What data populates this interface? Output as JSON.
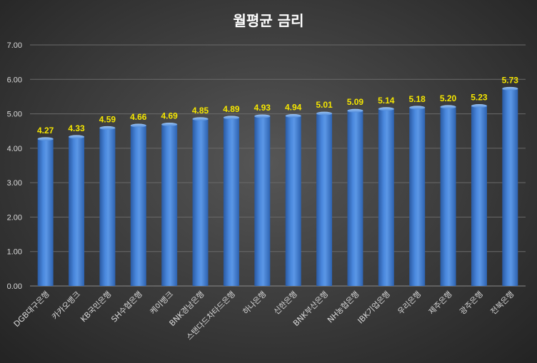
{
  "chart_data": {
    "type": "bar",
    "title": "월평균 금리",
    "categories": [
      "DGB대구은행",
      "카카오뱅크",
      "KB국민은행",
      "SH수협은행",
      "케이뱅크",
      "BNK경남은행",
      "스탠다드차타드은행",
      "하나은행",
      "신한은행",
      "BNK부산은행",
      "NH농협은행",
      "IBK기업은행",
      "우리은행",
      "제주은행",
      "광주은행",
      "전북은행"
    ],
    "values": [
      4.27,
      4.33,
      4.59,
      4.66,
      4.69,
      4.85,
      4.89,
      4.93,
      4.94,
      5.01,
      5.09,
      5.14,
      5.18,
      5.2,
      5.23,
      5.73
    ],
    "data_labels": [
      "4.27",
      "4.33",
      "4.59",
      "4.66",
      "4.69",
      "4.85",
      "4.89",
      "4.93",
      "4.94",
      "5.01",
      "5.09",
      "5.14",
      "5.18",
      "5.20",
      "5.23",
      "5.73"
    ],
    "ylim": [
      0,
      7
    ],
    "yticks": [
      "0.00",
      "1.00",
      "2.00",
      "3.00",
      "4.00",
      "5.00",
      "6.00",
      "7.00"
    ],
    "xlabel": "",
    "ylabel": "",
    "grid": true,
    "legend": "none",
    "colors": {
      "bar": "#3f7bd1",
      "bar_light": "#6fa3ea",
      "bar_dark": "#2a5aa3",
      "label": "#f5e600",
      "title": "#ffffff",
      "text": "#d9d9d9"
    }
  }
}
